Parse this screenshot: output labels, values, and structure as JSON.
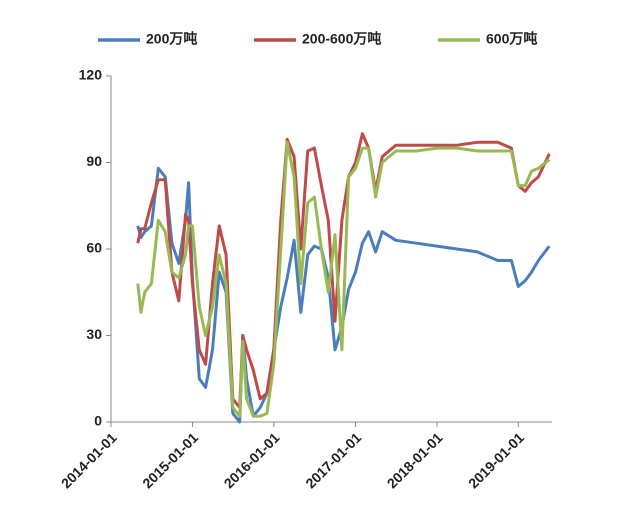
{
  "chart_data": {
    "type": "line",
    "x": [
      "2014-05-01",
      "2014-05-15",
      "2014-06-01",
      "2014-07-01",
      "2014-08-01",
      "2014-09-01",
      "2014-10-01",
      "2014-11-01",
      "2014-12-01",
      "2014-12-15",
      "2015-01-01",
      "2015-02-01",
      "2015-03-01",
      "2015-04-01",
      "2015-05-01",
      "2015-06-01",
      "2015-07-01",
      "2015-08-01",
      "2015-08-15",
      "2015-09-01",
      "2015-10-01",
      "2015-11-01",
      "2015-12-01",
      "2016-01-01",
      "2016-02-01",
      "2016-03-01",
      "2016-04-01",
      "2016-05-01",
      "2016-06-01",
      "2016-07-01",
      "2016-08-01",
      "2016-09-01",
      "2016-10-01",
      "2016-11-01",
      "2016-12-01",
      "2017-01-01",
      "2017-02-01",
      "2017-03-01",
      "2017-04-01",
      "2017-05-01",
      "2017-07-01",
      "2017-10-01",
      "2018-01-01",
      "2018-04-01",
      "2018-07-01",
      "2018-10-01",
      "2018-12-01",
      "2019-01-01",
      "2019-02-01",
      "2019-03-01",
      "2019-04-01",
      "2019-05-20"
    ],
    "series": [
      {
        "name": "200万吨",
        "color": "#4a7ebb",
        "values": [
          68,
          64,
          66,
          68,
          88,
          85,
          62,
          55,
          70,
          83,
          50,
          15,
          12,
          25,
          52,
          45,
          3,
          0,
          30,
          15,
          2,
          5,
          10,
          25,
          40,
          50,
          63,
          38,
          58,
          61,
          60,
          50,
          25,
          33,
          46,
          52,
          62,
          66,
          59,
          66,
          63,
          62,
          61,
          60,
          59,
          56,
          56,
          47,
          49,
          52,
          56,
          61
        ]
      },
      {
        "name": "200-600万吨",
        "color": "#be4b48",
        "values": [
          62,
          67,
          67,
          76,
          84,
          84,
          52,
          42,
          72,
          70,
          48,
          25,
          20,
          48,
          68,
          58,
          8,
          5,
          30,
          25,
          18,
          8,
          10,
          25,
          70,
          98,
          92,
          60,
          94,
          95,
          82,
          70,
          35,
          70,
          85,
          90,
          100,
          95,
          80,
          92,
          96,
          96,
          96,
          96,
          97,
          97,
          95,
          82,
          80,
          83,
          85,
          93
        ]
      },
      {
        "name": "600万吨",
        "color": "#98b954",
        "values": [
          48,
          38,
          45,
          48,
          70,
          66,
          52,
          50,
          58,
          68,
          68,
          40,
          30,
          40,
          58,
          48,
          5,
          2,
          28,
          8,
          2,
          2,
          3,
          20,
          60,
          97,
          85,
          48,
          76,
          78,
          60,
          45,
          65,
          25,
          85,
          88,
          95,
          95,
          78,
          90,
          94,
          94,
          95,
          95,
          94,
          94,
          94,
          82,
          82,
          87,
          88,
          91
        ]
      }
    ],
    "xlim": [
      "2014-01-01",
      "2019-06-01"
    ],
    "xticks": [
      "2014-01-01",
      "2015-01-01",
      "2016-01-01",
      "2017-01-01",
      "2018-01-01",
      "2019-01-01"
    ],
    "ylim": [
      0,
      120
    ],
    "yticks": [
      0,
      30,
      60,
      90,
      120
    ],
    "legend": "top"
  }
}
